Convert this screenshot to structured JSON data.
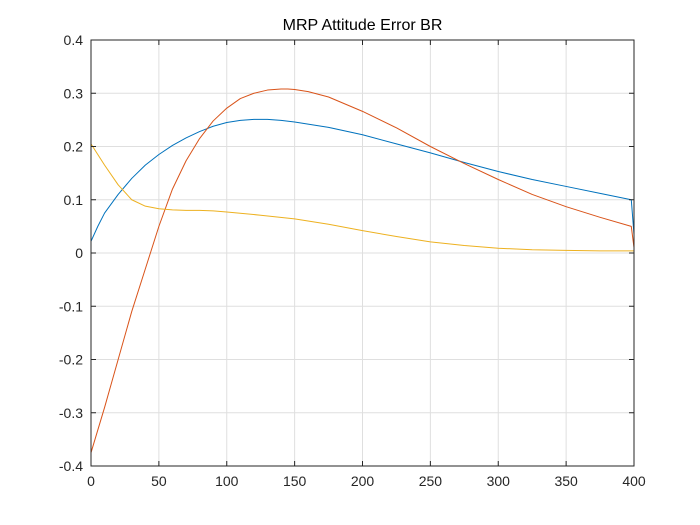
{
  "chart_data": {
    "type": "line",
    "title": "MRP Attitude Error BR",
    "xlabel": "",
    "ylabel": "",
    "xlim": [
      0,
      400
    ],
    "ylim": [
      -0.4,
      0.4
    ],
    "xticks": [
      0,
      50,
      100,
      150,
      200,
      250,
      300,
      350,
      400
    ],
    "yticks": [
      -0.4,
      -0.3,
      -0.2,
      -0.1,
      0,
      0.1,
      0.2,
      0.3,
      0.4
    ],
    "xtick_labels": [
      "0",
      "50",
      "100",
      "150",
      "200",
      "250",
      "300",
      "350",
      "400"
    ],
    "ytick_labels": [
      "-0.4",
      "-0.3",
      "-0.2",
      "-0.1",
      "0",
      "0.1",
      "0.2",
      "0.3",
      "0.4"
    ],
    "grid": true,
    "series": [
      {
        "color": "#0072BD",
        "x": [
          0,
          5,
          10,
          20,
          30,
          40,
          50,
          60,
          70,
          80,
          90,
          100,
          110,
          120,
          130,
          140,
          150,
          175,
          200,
          225,
          250,
          275,
          300,
          325,
          350,
          375,
          398,
          400
        ],
        "y": [
          0.022,
          0.05,
          0.075,
          0.11,
          0.14,
          0.165,
          0.185,
          0.202,
          0.216,
          0.228,
          0.238,
          0.245,
          0.249,
          0.251,
          0.251,
          0.249,
          0.246,
          0.236,
          0.222,
          0.205,
          0.188,
          0.17,
          0.153,
          0.138,
          0.125,
          0.112,
          0.1,
          0.035
        ]
      },
      {
        "color": "#D95319",
        "x": [
          0,
          10,
          20,
          30,
          40,
          50,
          60,
          70,
          80,
          90,
          100,
          110,
          120,
          130,
          140,
          145,
          150,
          160,
          175,
          200,
          225,
          250,
          275,
          300,
          325,
          350,
          375,
          398,
          400
        ],
        "y": [
          -0.375,
          -0.29,
          -0.2,
          -0.11,
          -0.03,
          0.05,
          0.12,
          0.173,
          0.215,
          0.248,
          0.272,
          0.29,
          0.3,
          0.306,
          0.308,
          0.308,
          0.307,
          0.303,
          0.293,
          0.266,
          0.235,
          0.2,
          0.168,
          0.138,
          0.11,
          0.087,
          0.067,
          0.05,
          0.01
        ]
      },
      {
        "color": "#EDB120",
        "x": [
          0,
          5,
          10,
          20,
          30,
          40,
          50,
          60,
          70,
          80,
          90,
          100,
          125,
          150,
          175,
          200,
          225,
          250,
          275,
          300,
          325,
          350,
          375,
          400
        ],
        "y": [
          0.205,
          0.185,
          0.165,
          0.128,
          0.1,
          0.088,
          0.083,
          0.081,
          0.08,
          0.08,
          0.079,
          0.077,
          0.071,
          0.064,
          0.054,
          0.042,
          0.031,
          0.021,
          0.014,
          0.009,
          0.006,
          0.005,
          0.004,
          0.004
        ]
      }
    ]
  }
}
